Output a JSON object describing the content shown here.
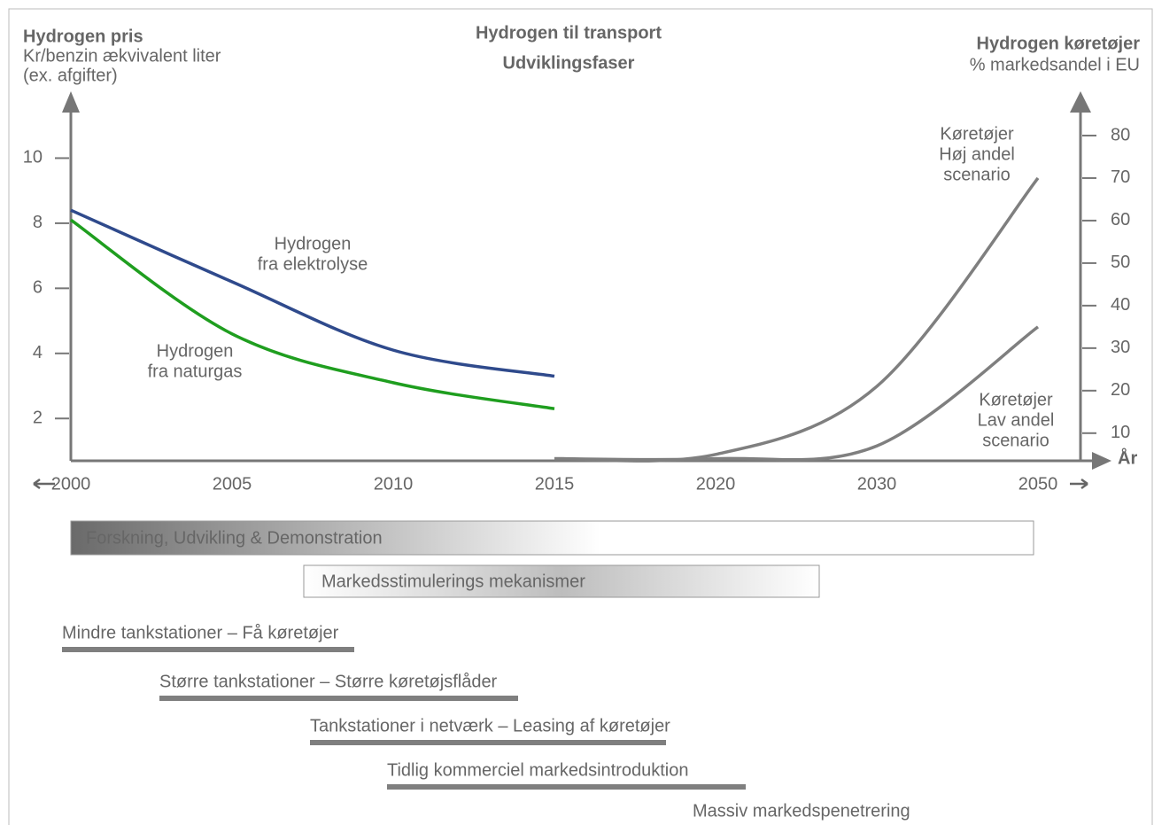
{
  "chart_data": {
    "type": "line",
    "title": [
      "Hydrogen til transport",
      "Udviklingsfaser"
    ],
    "y_label": [
      "Hydrogen pris",
      "Kr/benzin ækvivalent liter",
      "(ex. afgifter)"
    ],
    "y2_label": [
      "Hydrogen køretøjer",
      "% markedsandel i EU"
    ],
    "x_label": "År",
    "categories": [
      "2000",
      "2005",
      "2010",
      "2015",
      "2020",
      "2030",
      "2050"
    ],
    "series": [
      {
        "name": [
          "Hydrogen",
          "fra elektrolyse"
        ],
        "color": "#2f4a8c",
        "values": [
          8.4,
          6.2,
          4.1,
          3.3,
          null,
          null,
          null
        ]
      },
      {
        "name": [
          "Hydrogen",
          "fra naturgas"
        ],
        "color": "#1f9e1f",
        "values": [
          8.1,
          4.6,
          3.1,
          2.3,
          null,
          null,
          null
        ]
      },
      {
        "name": [
          "Køretøjer",
          "Høj andel",
          "scenario"
        ],
        "color": "#7f7f7f",
        "axis": "y2",
        "values": [
          null,
          null,
          null,
          4,
          5,
          21,
          70
        ]
      },
      {
        "name": [
          "Køretøjer",
          "Lav andel",
          "scenario"
        ],
        "color": "#7f7f7f",
        "axis": "y2",
        "values": [
          null,
          null,
          null,
          4,
          4,
          7,
          35
        ]
      }
    ],
    "ylim": [
      0.7,
      12
    ],
    "yticks": [
      2,
      4,
      6,
      8,
      10
    ],
    "y2lim": [
      3.5,
      90
    ],
    "y2ticks": [
      10,
      20,
      30,
      40,
      50,
      60,
      70,
      80
    ]
  },
  "phases": {
    "boxes": [
      "Forskning, Udvikling & Demonstration",
      "Markedsstimulerings mekanismer"
    ],
    "stages": [
      "Mindre tankstationer – Få køretøjer",
      "Større tankstationer – Større køretøjsflåder",
      "Tankstationer i netværk – Leasing af køretøjer",
      "Tidlig kommerciel markedsintroduktion",
      "Massiv markedspenetrering"
    ]
  }
}
